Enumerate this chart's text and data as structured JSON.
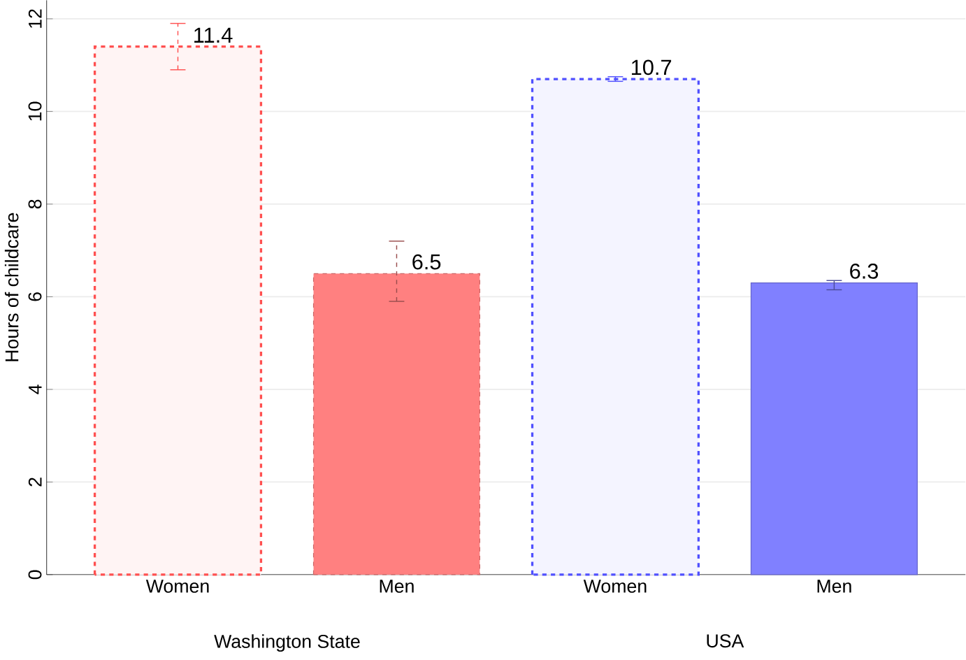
{
  "chart_data": {
    "type": "bar",
    "ylabel": "Hours of childcare",
    "categories": [
      "Women",
      "Men",
      "Women",
      "Men"
    ],
    "values": [
      11.4,
      6.5,
      10.7,
      6.3
    ],
    "colors": [
      "#ff5050",
      "#ff8080",
      "#5050ff",
      "#8080ff"
    ],
    "errors": [
      [
        10.9,
        11.9
      ],
      [
        5.9,
        7.2
      ],
      [
        10.65,
        10.75
      ],
      [
        6.15,
        6.35
      ]
    ],
    "data_labels": true,
    "annotations": [
      "Washington State",
      "USA"
    ],
    "ylim": [
      0,
      12.4
    ],
    "yticks": [
      0,
      2,
      4,
      6,
      8,
      10,
      12
    ],
    "grid": "y"
  }
}
